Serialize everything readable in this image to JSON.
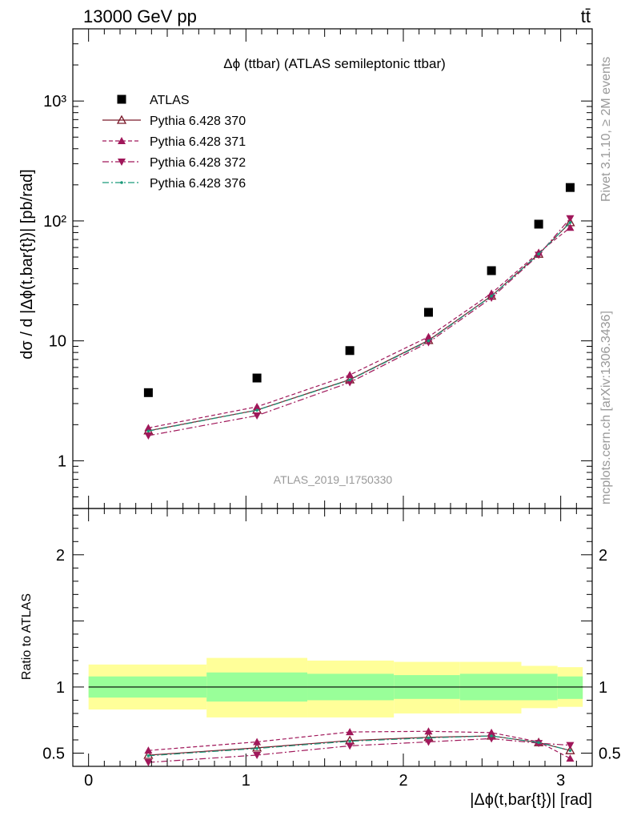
{
  "header": {
    "left": "13000 GeV pp",
    "right": "tt̄"
  },
  "side_labels": {
    "rivet": "Rivet 3.1.10, ≥ 2M events",
    "mcplots": "mcplots.cern.ch [arXiv:1306.3436]"
  },
  "chart_data": [
    {
      "type": "scatter",
      "panel": "main",
      "title": "Δϕ (ttbar) (ATLAS semileptonic ttbar)",
      "watermark": "ATLAS_2019_I1750330",
      "xlabel": "|Δϕ(t,bar{t})| [rad]",
      "ylabel": "dσ / d |Δϕ(t,bar{t})| [pb/rad]",
      "yscale": "log",
      "xlim": [
        -0.1,
        3.2
      ],
      "ylim": [
        0.4,
        4000
      ],
      "ytick_labels": [
        "1",
        "10",
        "10²",
        "10³"
      ],
      "legend_position": "top-left",
      "x": [
        0.38,
        1.07,
        1.66,
        2.16,
        2.56,
        2.86,
        3.06
      ],
      "series": [
        {
          "name": "ATLAS",
          "style": "data",
          "color": "#000000",
          "marker": "square",
          "values": [
            3.7,
            4.9,
            8.3,
            17.3,
            38.5,
            94,
            190
          ]
        },
        {
          "name": "Pythia 6.428 370",
          "style": "solid",
          "color": "#7a1a2a",
          "marker": "triangle-up-open",
          "values": [
            1.78,
            2.65,
            4.75,
            10.1,
            23.7,
            53,
            97
          ]
        },
        {
          "name": "Pythia 6.428 371",
          "style": "dashed",
          "color": "#a0175a",
          "marker": "triangle-up",
          "values": [
            1.88,
            2.82,
            5.2,
            10.8,
            24.9,
            54.5,
            88
          ]
        },
        {
          "name": "Pythia 6.428 372",
          "style": "dashdot",
          "color": "#a0175a",
          "marker": "triangle-down",
          "values": [
            1.62,
            2.38,
            4.5,
            9.7,
            22.8,
            52,
            105
          ]
        },
        {
          "name": "Pythia 6.428 376",
          "style": "dashdot",
          "color": "#1a9a7a",
          "marker": "dot",
          "values": [
            1.77,
            2.64,
            4.72,
            10.0,
            23.6,
            53,
            97
          ]
        }
      ]
    },
    {
      "type": "line",
      "panel": "ratio",
      "ylabel": "Ratio to ATLAS",
      "xlabel": "|Δϕ(t,bar{t})| [rad]",
      "xlim": [
        -0.1,
        3.2
      ],
      "ylim": [
        0.4,
        2.35
      ],
      "ytick_labels": [
        "0.5",
        "1",
        "2"
      ],
      "xtick_labels": [
        "0",
        "1",
        "2",
        "3"
      ],
      "bands": {
        "edges": [
          0.0,
          0.75,
          1.39,
          1.94,
          2.36,
          2.75,
          2.98,
          3.14
        ],
        "inner_lo": [
          0.92,
          0.89,
          0.9,
          0.91,
          0.9,
          0.9,
          0.91
        ],
        "inner_hi": [
          1.08,
          1.11,
          1.1,
          1.09,
          1.1,
          1.1,
          1.08
        ],
        "outer_lo": [
          0.83,
          0.77,
          0.77,
          0.8,
          0.8,
          0.84,
          0.85
        ],
        "outer_hi": [
          1.17,
          1.22,
          1.2,
          1.19,
          1.19,
          1.16,
          1.15
        ],
        "inner_color": "#99ff99",
        "outer_color": "#ffff99"
      },
      "x": [
        0.38,
        1.07,
        1.66,
        2.16,
        2.56,
        2.86,
        3.06
      ],
      "series": [
        {
          "name": "Pythia 6.428 370",
          "style": "solid",
          "color": "#7a1a2a",
          "marker": "triangle-up-open",
          "values": [
            0.485,
            0.54,
            0.595,
            0.62,
            0.63,
            0.58,
            0.52
          ]
        },
        {
          "name": "Pythia 6.428 371",
          "style": "dashed",
          "color": "#a0175a",
          "marker": "triangle-up",
          "values": [
            0.52,
            0.585,
            0.66,
            0.665,
            0.655,
            0.585,
            0.46
          ]
        },
        {
          "name": "Pythia 6.428 372",
          "style": "dashdot",
          "color": "#a0175a",
          "marker": "triangle-down",
          "values": [
            0.43,
            0.485,
            0.555,
            0.585,
            0.61,
            0.575,
            0.56
          ]
        },
        {
          "name": "Pythia 6.428 376",
          "style": "dashdot",
          "color": "#1a9a7a",
          "marker": "dot",
          "values": [
            0.48,
            0.535,
            0.59,
            0.615,
            0.63,
            0.58,
            0.52
          ]
        }
      ]
    }
  ]
}
